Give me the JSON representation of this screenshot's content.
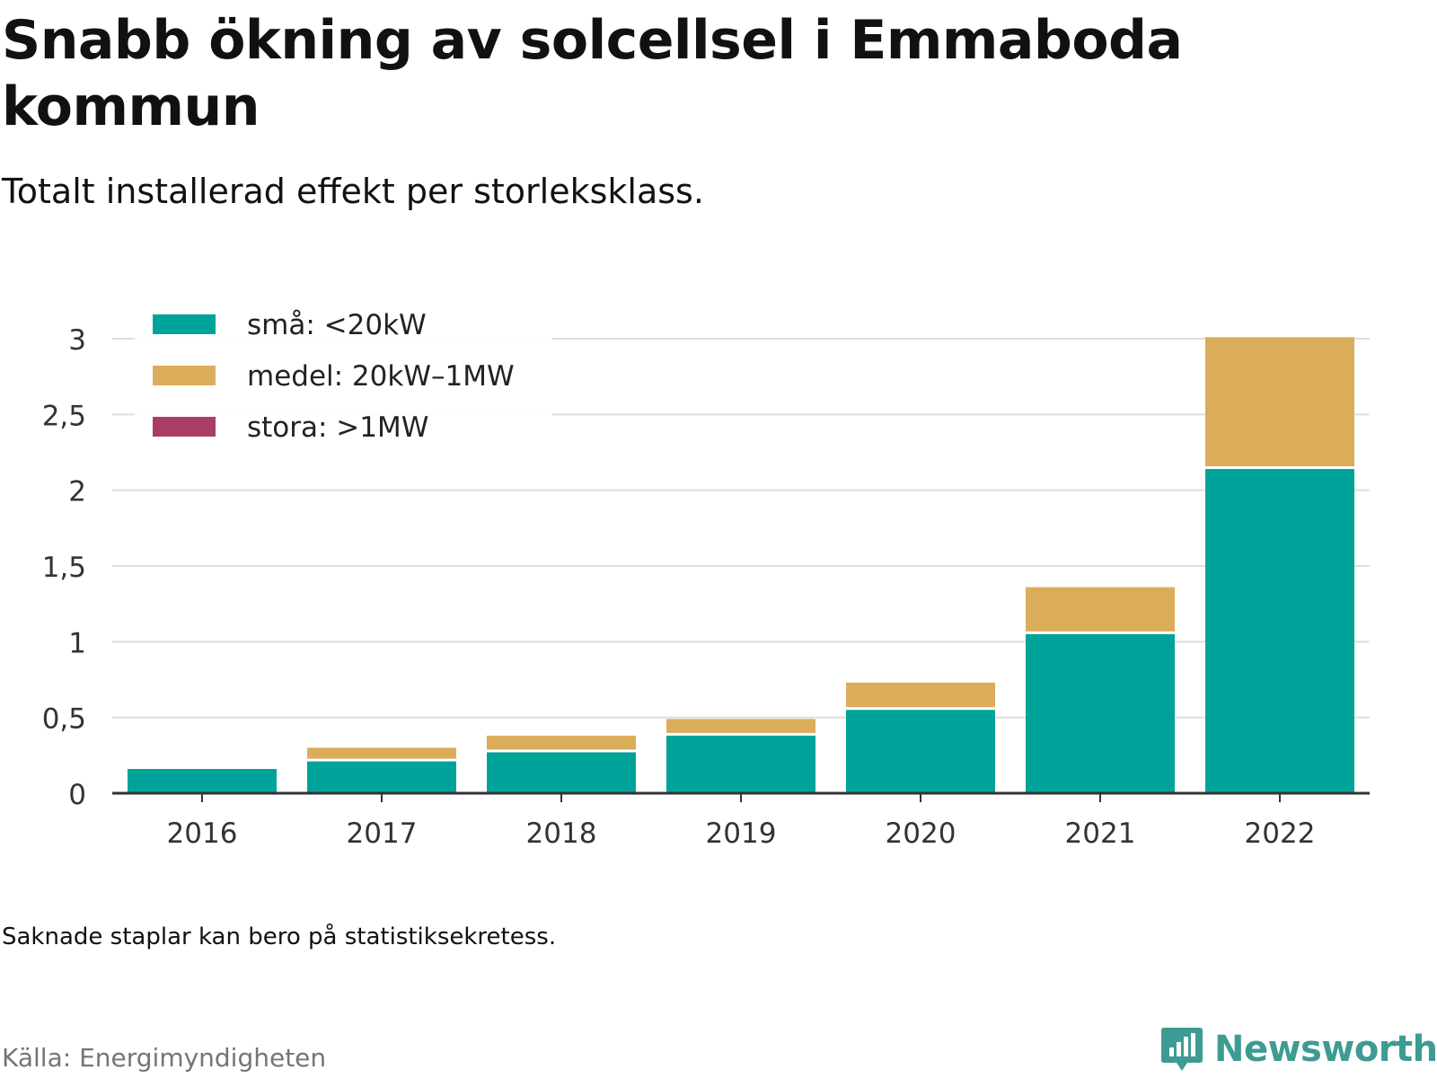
{
  "title": "Snabb ökning av solcellsel i Emmaboda kommun",
  "subtitle": "Totalt installerad effekt per storleksklass.",
  "note": "Saknade staplar kan bero på statistiksekretess.",
  "source": "Källa: Energimyndigheten",
  "brand": {
    "name": "Newsworthy",
    "icon": "newsworthy-logo-icon",
    "color": "#3d9b93"
  },
  "chart_data": {
    "type": "bar",
    "stacked": true,
    "categories": [
      "2016",
      "2017",
      "2018",
      "2019",
      "2020",
      "2021",
      "2022"
    ],
    "series": [
      {
        "name": "små: <20kW",
        "color": "#00a39a",
        "values": [
          0.16,
          0.21,
          0.27,
          0.38,
          0.55,
          1.05,
          2.14
        ]
      },
      {
        "name": "medel: 20kW–1MW",
        "color": "#dbad5a",
        "values": [
          0,
          0.09,
          0.11,
          0.11,
          0.18,
          0.31,
          0.87
        ]
      },
      {
        "name": "stora: >1MW",
        "color": "#a83e68",
        "values": [
          0,
          0,
          0,
          0,
          0,
          0,
          0
        ]
      }
    ],
    "yticks": [
      "0",
      "0,5",
      "1",
      "1,5",
      "2",
      "2,5",
      "3"
    ],
    "ylim": [
      0,
      3
    ],
    "grid": true,
    "legend_position": "top-left"
  }
}
